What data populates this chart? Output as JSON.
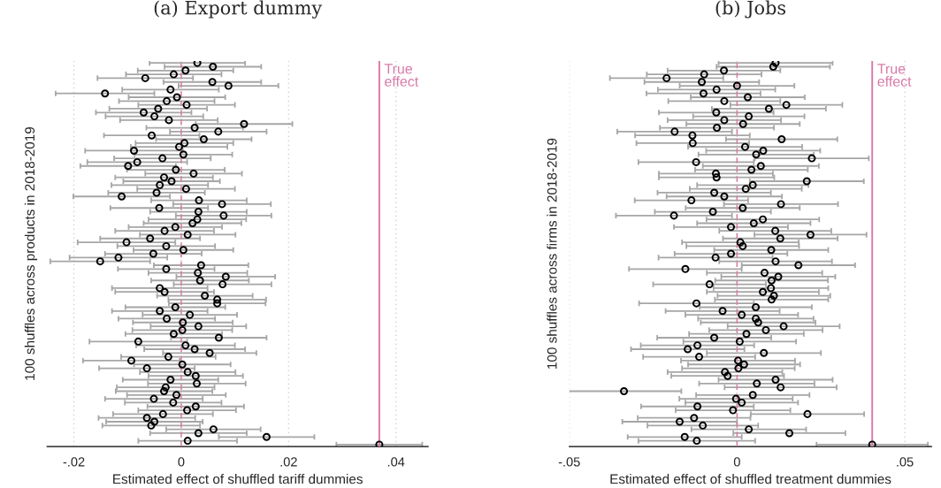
{
  "chart_data": [
    {
      "type": "scatter",
      "orientation": "horizontal",
      "title": "(a) Export dummy",
      "xlabel": "Estimated effect of shuffled tariff dummies",
      "ylabel": "100 shuffles across products in 2018-2019",
      "categories": [
        null,
        null,
        null,
        null,
        null,
        null,
        null,
        null,
        null,
        null,
        null,
        null,
        null,
        null,
        null,
        null,
        null,
        null,
        null,
        null,
        null,
        null,
        null,
        null,
        null,
        null,
        null,
        null,
        null,
        null,
        null,
        null,
        null,
        null,
        null,
        null,
        null,
        null,
        null,
        null,
        null,
        null,
        null,
        null,
        null,
        null,
        null,
        null,
        null,
        null,
        null,
        null,
        null,
        null,
        null,
        null,
        null,
        null,
        null,
        null,
        null,
        null,
        null,
        null,
        null,
        null,
        null,
        null,
        null,
        null,
        null,
        null,
        null,
        null,
        null,
        null,
        null,
        null,
        null,
        null,
        null,
        null,
        null,
        null,
        null,
        null,
        null,
        null,
        null,
        null,
        null,
        null,
        null,
        null,
        null,
        null,
        null,
        null,
        null,
        null,
        null
      ],
      "color": "#000000",
      "values": [
        0.003,
        0.0059,
        0.0008,
        -0.0014,
        -0.0067,
        0.0058,
        0.0088,
        -0.002,
        -0.0142,
        -0.0008,
        -0.0027,
        0.001,
        -0.0043,
        -0.007,
        -0.005,
        -0.0023,
        0.0117,
        0.0025,
        0.0069,
        -0.0055,
        0.0042,
        0.0006,
        -0.0004,
        -0.0088,
        0.0004,
        -0.0035,
        -0.0082,
        -0.0099,
        -0.001,
        0.0023,
        -0.0032,
        -0.0018,
        -0.004,
        0.0009,
        -0.0046,
        -0.0111,
        0.0033,
        0.0076,
        -0.0041,
        0.0032,
        0.0079,
        0.003,
        0.0021,
        -0.0011,
        -0.0031,
        0.0012,
        -0.0058,
        -0.0102,
        -0.0028,
        0.0004,
        -0.0052,
        -0.0117,
        -0.0151,
        0.0037,
        -0.0028,
        0.0031,
        0.0083,
        0.0035,
        0.0077,
        -0.004,
        -0.0031,
        0.0044,
        0.0067,
        0.0067,
        -0.0011,
        -0.004,
        0.0016,
        -0.0027,
        0.0003,
        0.0032,
        0.0002,
        -0.0014,
        0.007,
        -0.008,
        0.0008,
        0.0025,
        0.0053,
        -0.0024,
        -0.0093,
        0.0002,
        -0.0064,
        0.0012,
        0.0027,
        -0.002,
        0.0029,
        -0.0029,
        -0.0032,
        -0.0009,
        -0.0051,
        -0.0015,
        0.0027,
        0.0011,
        -0.0034,
        -0.0064,
        -0.005,
        -0.0056,
        0.006,
        0.0032,
        0.0159,
        0.0012,
        0.0369
      ],
      "errors": [
        0.0089,
        0.009,
        0.0089,
        0.0089,
        0.0089,
        0.0091,
        0.0093,
        0.009,
        0.0092,
        0.009,
        0.0089,
        0.009,
        0.0091,
        0.0089,
        0.0091,
        0.0091,
        0.009,
        0.009,
        0.009,
        0.0089,
        0.0089,
        0.0091,
        0.009,
        0.0091,
        0.0091,
        0.009,
        0.0093,
        0.0089,
        0.0091,
        0.009,
        0.0091,
        0.009,
        0.009,
        0.0091,
        0.009,
        0.009,
        0.0089,
        0.0091,
        0.0091,
        0.009,
        0.0089,
        0.0091,
        0.0091,
        0.0087,
        0.0092,
        0.0089,
        0.0093,
        0.0091,
        0.0091,
        0.0093,
        0.009,
        0.0091,
        0.0093,
        0.0088,
        0.009,
        0.0092,
        0.0092,
        0.0091,
        0.0091,
        0.0089,
        0.0092,
        0.0089,
        0.0091,
        0.009,
        0.0093,
        0.0089,
        0.0088,
        0.009,
        0.0093,
        0.0089,
        0.0093,
        0.009,
        0.0089,
        0.0091,
        0.0092,
        0.0094,
        0.0087,
        0.0088,
        0.009,
        0.009,
        0.0089,
        0.0089,
        0.0088,
        0.0089,
        0.0091,
        0.0091,
        0.009,
        0.0092,
        0.0091,
        0.009,
        0.009,
        0.0091,
        0.0093,
        0.009,
        0.009,
        0.0091,
        0.0088,
        0.009,
        0.0089,
        0.0092,
        0.008
      ],
      "xlim": [
        -0.025,
        0.046
      ],
      "xticks": [
        {
          "value": -0.02,
          "label": "-.02"
        },
        0,
        {
          "value": 0.02,
          "label": ".02"
        },
        {
          "value": 0.04,
          "label": ".04"
        }
      ],
      "tick_labels": "x",
      "grid": "x",
      "marker": "circle",
      "ref_lines": [
        {
          "axis": "x",
          "value": 0,
          "color": "#d97aa8",
          "line_style": "dashed"
        },
        {
          "axis": "x",
          "value": 0.0369,
          "label": "True effect",
          "color": "#d97aa8",
          "line_style": "solid"
        }
      ]
    },
    {
      "type": "scatter",
      "orientation": "horizontal",
      "title": "(b) Jobs",
      "xlabel": "Estimated effect of shuffled treatment dummies",
      "ylabel": "100 shuffles across firms in 2018-2019",
      "categories": [
        null,
        null,
        null,
        null,
        null,
        null,
        null,
        null,
        null,
        null,
        null,
        null,
        null,
        null,
        null,
        null,
        null,
        null,
        null,
        null,
        null,
        null,
        null,
        null,
        null,
        null,
        null,
        null,
        null,
        null,
        null,
        null,
        null,
        null,
        null,
        null,
        null,
        null,
        null,
        null,
        null,
        null,
        null,
        null,
        null,
        null,
        null,
        null,
        null,
        null,
        null,
        null,
        null,
        null,
        null,
        null,
        null,
        null,
        null,
        null,
        null,
        null,
        null,
        null,
        null,
        null,
        null,
        null,
        null,
        null,
        null,
        null,
        null,
        null,
        null,
        null,
        null,
        null,
        null,
        null,
        null,
        null,
        null,
        null,
        null,
        null,
        null,
        null,
        null,
        null,
        null,
        null,
        null,
        null,
        null,
        null,
        null,
        null,
        null,
        null,
        null
      ],
      "color": "#000000",
      "values": [
        0.0115,
        0.0108,
        -0.0039,
        -0.0098,
        -0.021,
        -0.0105,
        0.0,
        -0.0061,
        -0.01,
        0.0032,
        -0.0038,
        0.0147,
        0.0095,
        -0.0062,
        0.0035,
        -0.0038,
        0.0018,
        -0.006,
        -0.0186,
        -0.0133,
        0.0133,
        -0.0132,
        0.0024,
        0.0078,
        0.0057,
        0.0223,
        -0.0122,
        0.0071,
        0.0043,
        -0.0063,
        -0.0061,
        0.0208,
        0.0047,
        0.0026,
        -0.0068,
        -0.0038,
        -0.0136,
        0.0131,
        0.0017,
        -0.0072,
        -0.0188,
        0.0077,
        0.005,
        -0.0018,
        0.0114,
        0.0219,
        0.0129,
        0.001,
        0.0017,
        0.0102,
        -0.0018,
        -0.0064,
        0.0115,
        0.0183,
        -0.0154,
        0.0082,
        0.0123,
        0.0103,
        -0.0082,
        0.0101,
        0.0077,
        0.011,
        0.0103,
        -0.0121,
        0.0056,
        -0.0043,
        0.0014,
        0.0056,
        0.0063,
        0.0139,
        0.0086,
        0.0028,
        -0.0068,
        0.0008,
        -0.0118,
        -0.0147,
        0.008,
        -0.0113,
        0.0003,
        0.0021,
        0.0004,
        -0.0036,
        -0.0028,
        0.0115,
        0.0059,
        0.013,
        -0.0337,
        0.0047,
        -0.0003,
        0.0014,
        -0.0118,
        -0.0012,
        0.021,
        -0.0128,
        -0.0171,
        -0.0102,
        0.0035,
        0.0156,
        -0.0156,
        -0.012,
        0.0403
      ],
      "errors": [
        0.017,
        0.0169,
        0.0168,
        0.0171,
        0.0169,
        0.0171,
        0.0171,
        0.0175,
        0.017,
        0.017,
        0.0167,
        0.0167,
        0.017,
        0.0171,
        0.0166,
        0.0169,
        0.0169,
        0.017,
        0.0171,
        0.0171,
        0.0166,
        0.0168,
        0.017,
        0.017,
        0.0172,
        0.017,
        0.0172,
        0.0173,
        0.0168,
        0.017,
        0.0172,
        0.017,
        0.0166,
        0.0167,
        0.0169,
        0.0172,
        0.0169,
        0.017,
        0.017,
        0.0173,
        0.0173,
        0.0168,
        0.0169,
        0.017,
        0.0167,
        0.0167,
        0.0171,
        0.0174,
        0.0168,
        0.017,
        0.0168,
        0.017,
        0.0168,
        0.0169,
        0.0168,
        0.0172,
        0.017,
        0.0168,
        0.0168,
        0.0171,
        0.0167,
        0.0168,
        0.0169,
        0.0171,
        0.0167,
        0.017,
        0.0168,
        0.0172,
        0.0171,
        0.0167,
        0.0169,
        0.0171,
        0.017,
        0.0168,
        0.0169,
        0.0169,
        0.017,
        0.0167,
        0.017,
        0.0167,
        0.0168,
        0.0171,
        0.0168,
        0.017,
        0.0172,
        0.0167,
        0.0171,
        0.0169,
        0.0169,
        0.0168,
        0.0168,
        0.0171,
        0.0169,
        0.0168,
        0.0171,
        0.0165,
        0.0171,
        0.0167,
        0.017,
        0.0174,
        0.0166
      ],
      "xlim": [
        -0.05,
        0.058
      ],
      "xticks": [
        {
          "value": -0.05,
          "label": "-.05"
        },
        0,
        {
          "value": 0.05,
          "label": ".05"
        }
      ],
      "tick_labels": "x",
      "grid": "x",
      "marker": "circle",
      "ref_lines": [
        {
          "axis": "x",
          "value": 0,
          "color": "#d97aa8",
          "line_style": "dashed"
        },
        {
          "axis": "x",
          "value": 0.0403,
          "label": "True effect",
          "color": "#d97aa8",
          "line_style": "solid"
        }
      ]
    }
  ]
}
